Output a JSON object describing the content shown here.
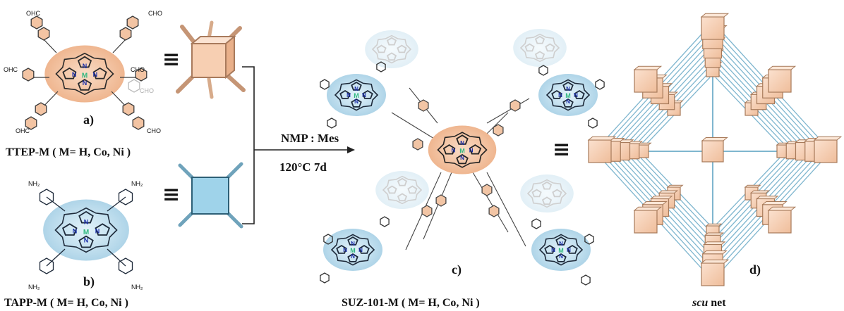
{
  "molecules": {
    "ttep": {
      "name": "TTEP-M ( M= H, Co, Ni )",
      "label": "a)",
      "substituent": "CHO",
      "sub_display": "OHC"
    },
    "tapp": {
      "name": "TAPP-M ( M= H, Co, Ni )",
      "label": "b)",
      "substituent": "NH2",
      "sub_display": "NH₂"
    },
    "suz": {
      "name": "SUZ-101-M ( M= H, Co, Ni )",
      "label": "c)"
    },
    "metal": "M",
    "nitrogen": "N"
  },
  "reaction": {
    "solvent": "NMP : Mes",
    "conditions": "120°C 7d"
  },
  "net": {
    "name_italic": "scu",
    "name_rest": " net",
    "label": "d)"
  },
  "equivalence_symbol": "≡",
  "colors": {
    "peach": "#f4c7a8",
    "peach_dark": "#b88765",
    "blue": "#a9d9ec",
    "blue_dark": "#4d8aa6",
    "metal_green": "#2fb77f",
    "nitrogen": "#1a2ea8"
  }
}
